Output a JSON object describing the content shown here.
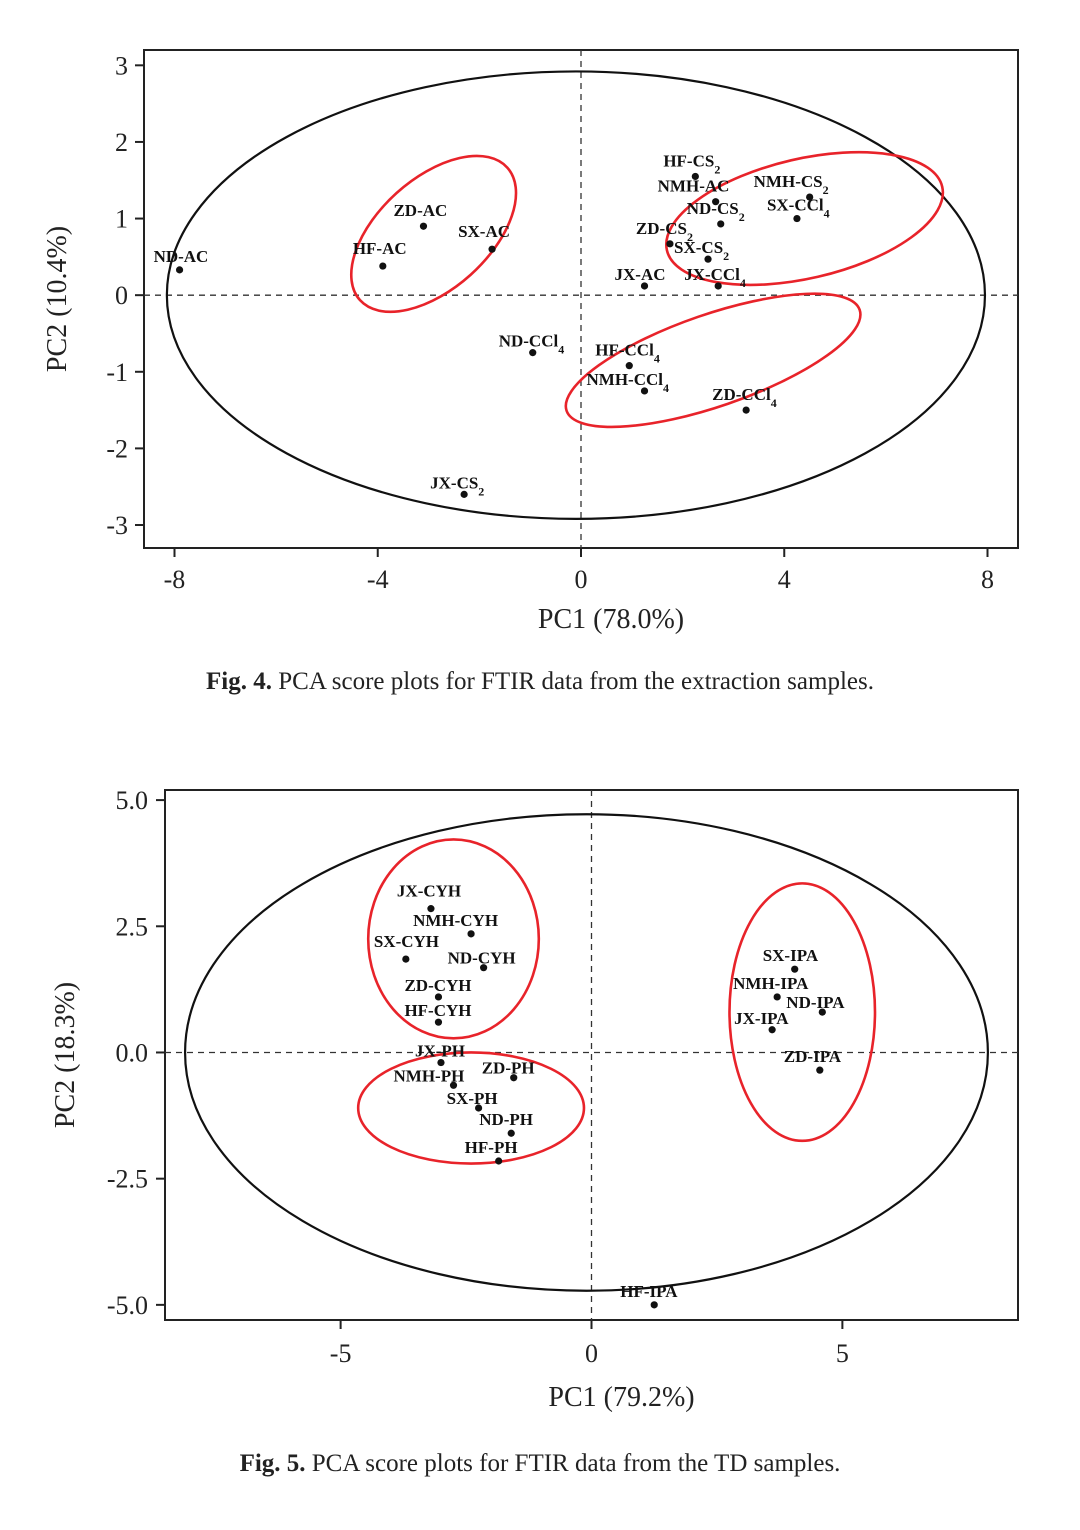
{
  "chart_data": [
    {
      "type": "scatter",
      "xlabel": "PC1 (78.0%)",
      "ylabel": "PC2 (10.4%)",
      "xlim": [
        -8.6,
        8.6
      ],
      "ylim": [
        -3.3,
        3.2
      ],
      "xticks": [
        -8,
        -4,
        0,
        4,
        8
      ],
      "xtick_labels": [
        "-8",
        "-4",
        "0",
        "4",
        "8"
      ],
      "yticks": [
        3,
        2,
        1,
        0,
        -1,
        -2,
        -3
      ],
      "ytick_labels": [
        "3",
        "2",
        "1",
        "0",
        "-1",
        "-2",
        "-3"
      ],
      "confidence_ellipse": {
        "cx": -0.1,
        "cy": 0.0,
        "rx": 8.05,
        "ry": 2.92
      },
      "group_ellipses": [
        {
          "cx": -2.9,
          "cy": 0.8,
          "rx": 1.95,
          "ry": 0.72,
          "angle": -42
        },
        {
          "cx": 4.4,
          "cy": 1.0,
          "rx": 2.78,
          "ry": 0.78,
          "angle": -13
        },
        {
          "cx": 2.6,
          "cy": -0.85,
          "rx": 3.05,
          "ry": 0.6,
          "angle": -19
        },
        {}
      ],
      "points": [
        {
          "name": "ND-AC",
          "x": -7.9,
          "y": 0.33,
          "label": "ND-AC",
          "sub": ""
        },
        {
          "name": "ZD-AC",
          "x": -3.1,
          "y": 0.9,
          "label": "ZD-AC",
          "sub": ""
        },
        {
          "name": "HF-AC",
          "x": -3.9,
          "y": 0.38,
          "label": "HF-AC",
          "sub": ""
        },
        {
          "name": "SX-AC",
          "x": -1.75,
          "y": 0.6,
          "label": "SX-AC",
          "sub": ""
        },
        {
          "name": "HF-CS2",
          "x": 2.25,
          "y": 1.55,
          "label": "HF-CS",
          "sub": "2"
        },
        {
          "name": "NMH-AC",
          "x": 2.65,
          "y": 1.22,
          "label": "NMH-AC",
          "sub": ""
        },
        {
          "name": "NMH-CS2",
          "x": 4.5,
          "y": 1.28,
          "label": "NMH-CS",
          "sub": "2"
        },
        {
          "name": "ND-CS2",
          "x": 2.75,
          "y": 0.93,
          "label": "ND-CS",
          "sub": "2"
        },
        {
          "name": "SX-CCl4",
          "x": 4.25,
          "y": 1.0,
          "label": "SX-CCl",
          "sub": "4"
        },
        {
          "name": "ZD-CS2",
          "x": 1.75,
          "y": 0.67,
          "label": "ZD-CS",
          "sub": "2"
        },
        {
          "name": "SX-CS2",
          "x": 2.5,
          "y": 0.47,
          "label": "SX-CS",
          "sub": "2"
        },
        {
          "name": "JX-AC",
          "x": 1.25,
          "y": 0.12,
          "label": "JX-AC",
          "sub": ""
        },
        {
          "name": "JX-CCl4",
          "x": 2.7,
          "y": 0.12,
          "label": "JX-CCl",
          "sub": "4"
        },
        {
          "name": "ND-CCl4",
          "x": -0.95,
          "y": -0.75,
          "label": "ND-CCl",
          "sub": "4"
        },
        {
          "name": "HF-CCl4",
          "x": 0.95,
          "y": -0.92,
          "label": "HF-CCl",
          "sub": "4"
        },
        {
          "name": "NMH-CCl4",
          "x": 1.25,
          "y": -1.25,
          "label": "NMH-CCl",
          "sub": "4"
        },
        {
          "name": "ZD-CCl4",
          "x": 3.25,
          "y": -1.5,
          "label": "ZD-CCl",
          "sub": "4"
        },
        {
          "name": "JX-CS2",
          "x": -2.3,
          "y": -2.6,
          "label": "JX-CS",
          "sub": "2"
        }
      ]
    },
    {
      "type": "scatter",
      "xlabel": "PC1 (79.2%)",
      "ylabel": "PC2 (18.3%)",
      "xlim": [
        -8.5,
        8.5
      ],
      "ylim": [
        -5.3,
        5.2
      ],
      "xticks": [
        -5,
        0,
        5
      ],
      "xtick_labels": [
        "-5",
        "0",
        "5"
      ],
      "yticks": [
        5,
        2.5,
        0,
        -2.5,
        -5
      ],
      "ytick_labels": [
        "5.0",
        "2.5",
        "0.0",
        "-2.5",
        "-5.0"
      ],
      "confidence_ellipse": {
        "cx": -0.1,
        "cy": 0.0,
        "rx": 8.0,
        "ry": 4.72
      },
      "group_ellipses": [
        {
          "cx": -2.75,
          "cy": 2.25,
          "rx": 1.7,
          "ry": 1.97,
          "angle": 0
        },
        {
          "cx": -2.4,
          "cy": -1.1,
          "rx": 2.25,
          "ry": 1.1,
          "angle": 0
        },
        {
          "cx": 4.2,
          "cy": 0.8,
          "rx": 1.45,
          "ry": 2.55,
          "angle": 0
        }
      ],
      "points": [
        {
          "name": "JX-CYH",
          "x": -3.2,
          "y": 2.85,
          "label": "JX-CYH",
          "sub": ""
        },
        {
          "name": "NMH-CYH",
          "x": -2.4,
          "y": 2.35,
          "label": "NMH-CYH",
          "sub": ""
        },
        {
          "name": "SX-CYH",
          "x": -3.7,
          "y": 1.85,
          "label": "SX-CYH",
          "sub": ""
        },
        {
          "name": "ND-CYH",
          "x": -2.15,
          "y": 1.68,
          "label": "ND-CYH",
          "sub": ""
        },
        {
          "name": "ZD-CYH",
          "x": -3.05,
          "y": 1.1,
          "label": "ZD-CYH",
          "sub": ""
        },
        {
          "name": "HF-CYH",
          "x": -3.05,
          "y": 0.6,
          "label": "HF-CYH",
          "sub": ""
        },
        {
          "name": "JX-PH",
          "x": -3.0,
          "y": -0.2,
          "label": "JX-PH",
          "sub": ""
        },
        {
          "name": "NMH-PH",
          "x": -2.75,
          "y": -0.65,
          "label": "NMH-PH",
          "sub": ""
        },
        {
          "name": "ZD-PH",
          "x": -1.55,
          "y": -0.5,
          "label": "ZD-PH",
          "sub": ""
        },
        {
          "name": "SX-PH",
          "x": -2.25,
          "y": -1.1,
          "label": "SX-PH",
          "sub": ""
        },
        {
          "name": "ND-PH",
          "x": -1.6,
          "y": -1.6,
          "label": "ND-PH",
          "sub": ""
        },
        {
          "name": "HF-PH",
          "x": -1.85,
          "y": -2.15,
          "label": "HF-PH",
          "sub": ""
        },
        {
          "name": "SX-IPA",
          "x": 4.05,
          "y": 1.65,
          "label": "SX-IPA",
          "sub": ""
        },
        {
          "name": "NMH-IPA",
          "x": 3.7,
          "y": 1.1,
          "label": "NMH-IPA",
          "sub": ""
        },
        {
          "name": "ND-IPA",
          "x": 4.6,
          "y": 0.8,
          "label": "ND-IPA",
          "sub": ""
        },
        {
          "name": "JX-IPA",
          "x": 3.6,
          "y": 0.45,
          "label": "JX-IPA",
          "sub": ""
        },
        {
          "name": "ZD-IPA",
          "x": 4.55,
          "y": -0.35,
          "label": "ZD-IPA",
          "sub": ""
        },
        {
          "name": "HF-IPA",
          "x": 1.25,
          "y": -5.0,
          "label": "HF-IPA",
          "sub": ""
        }
      ]
    }
  ],
  "captions": {
    "fig4": {
      "label": "Fig. 4.",
      "text": "PCA score plots for FTIR data from the extraction samples."
    },
    "fig5": {
      "label": "Fig. 5.",
      "text": "PCA score plots for FTIR data from the TD samples."
    }
  },
  "colors": {
    "group_ellipse": "#e8232a",
    "axis": "#222222",
    "point": "#111111"
  }
}
